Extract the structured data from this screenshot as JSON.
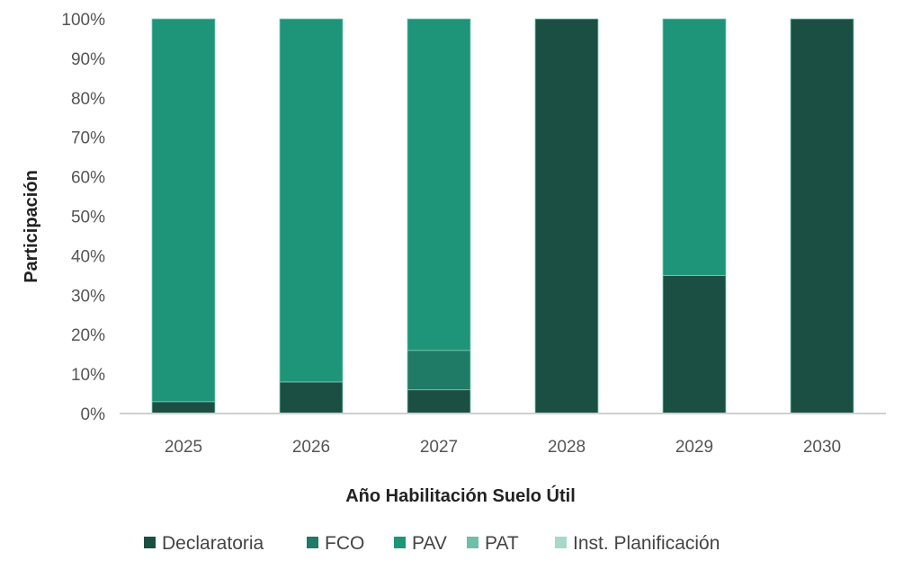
{
  "chart_data": {
    "type": "bar",
    "stacked": true,
    "percent": true,
    "title": "",
    "xlabel": "Año Habilitación Suelo Útil",
    "ylabel": "Participación",
    "ylim": [
      0,
      100
    ],
    "yticks": [
      "0%",
      "10%",
      "20%",
      "30%",
      "40%",
      "50%",
      "60%",
      "70%",
      "80%",
      "90%",
      "100%"
    ],
    "categories": [
      "2025",
      "2026",
      "2027",
      "2028",
      "2029",
      "2030"
    ],
    "series": [
      {
        "name": "Declaratoria",
        "color": "#1b4f43",
        "values": [
          3,
          8,
          6,
          100,
          35,
          100
        ]
      },
      {
        "name": "FCO",
        "color": "#1f7a66",
        "values": [
          0,
          0,
          10,
          0,
          0,
          0
        ]
      },
      {
        "name": "PAV",
        "color": "#1e9478",
        "values": [
          97,
          92,
          84,
          0,
          65,
          0
        ]
      },
      {
        "name": "PAT",
        "color": "#6fbfa8",
        "values": [
          0,
          0,
          0,
          0,
          0,
          0
        ]
      },
      {
        "name": "Inst. Planificación",
        "color": "#a8d8c8",
        "values": [
          0,
          0,
          0,
          0,
          0,
          0
        ]
      }
    ],
    "grid": false,
    "legend_position": "bottom"
  }
}
